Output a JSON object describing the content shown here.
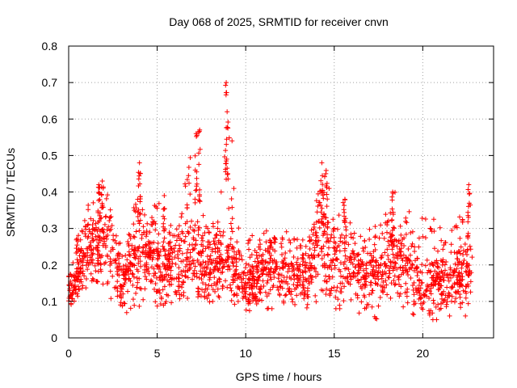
{
  "chart_data": {
    "type": "scatter",
    "title": "Day 068 of 2025, SRMTID for receiver cnvn",
    "xlabel": "GPS time / hours",
    "ylabel": "SRMTID / TECUs",
    "xlim": [
      0,
      24
    ],
    "ylim": [
      0,
      0.8
    ],
    "xticks": [
      0,
      5,
      10,
      15,
      20
    ],
    "xtick_labels": [
      "0",
      "5",
      "10",
      "15",
      "20"
    ],
    "yticks": [
      0,
      0.1,
      0.2,
      0.3,
      0.4,
      0.5,
      0.6,
      0.7,
      0.8
    ],
    "ytick_labels": [
      "0",
      "0.1",
      "0.2",
      "0.3",
      "0.4",
      "0.5",
      "0.6",
      "0.7",
      "0.8"
    ],
    "grid": true,
    "marker": "+",
    "color": "#ff0000",
    "series_envelope": {
      "description": "Dense scatter; approximate typical level and upper envelope vs hour",
      "hours": [
        0,
        0.5,
        1,
        1.5,
        2,
        2.5,
        3,
        3.5,
        4,
        4.5,
        5,
        5.5,
        6,
        6.5,
        7,
        7.5,
        8,
        8.5,
        9,
        9.5,
        10,
        10.5,
        11,
        11.5,
        12,
        12.5,
        13,
        13.5,
        14,
        14.5,
        15,
        15.5,
        16,
        16.5,
        17,
        17.5,
        18,
        18.5,
        19,
        19.5,
        20,
        20.5,
        21,
        21.5,
        22,
        22.5,
        22.8
      ],
      "typical": [
        0.12,
        0.16,
        0.22,
        0.24,
        0.26,
        0.22,
        0.13,
        0.2,
        0.22,
        0.22,
        0.18,
        0.18,
        0.2,
        0.18,
        0.24,
        0.2,
        0.18,
        0.2,
        0.2,
        0.18,
        0.13,
        0.15,
        0.18,
        0.18,
        0.18,
        0.16,
        0.16,
        0.17,
        0.24,
        0.24,
        0.2,
        0.2,
        0.18,
        0.16,
        0.16,
        0.16,
        0.18,
        0.2,
        0.18,
        0.16,
        0.14,
        0.14,
        0.14,
        0.15,
        0.16,
        0.17,
        0.18
      ],
      "max": [
        0.2,
        0.28,
        0.35,
        0.42,
        0.44,
        0.32,
        0.25,
        0.3,
        0.48,
        0.3,
        0.4,
        0.32,
        0.3,
        0.4,
        0.57,
        0.35,
        0.3,
        0.35,
        0.7,
        0.35,
        0.28,
        0.3,
        0.3,
        0.28,
        0.3,
        0.3,
        0.28,
        0.27,
        0.38,
        0.48,
        0.32,
        0.38,
        0.3,
        0.28,
        0.3,
        0.33,
        0.35,
        0.41,
        0.38,
        0.39,
        0.33,
        0.33,
        0.33,
        0.3,
        0.35,
        0.3,
        0.42
      ],
      "min": [
        0.08,
        0.1,
        0.12,
        0.1,
        0.12,
        0.1,
        0.05,
        0.07,
        0.08,
        0.12,
        0.05,
        0.1,
        0.08,
        0.1,
        0.12,
        0.08,
        0.1,
        0.1,
        0.07,
        0.1,
        0.06,
        0.08,
        0.08,
        0.08,
        0.08,
        0.08,
        0.1,
        0.08,
        0.1,
        0.08,
        0.08,
        0.08,
        0.08,
        0.06,
        0.06,
        0.05,
        0.08,
        0.08,
        0.08,
        0.06,
        0.06,
        0.05,
        0.05,
        0.06,
        0.06,
        0.06,
        0.08
      ]
    },
    "peaks": [
      {
        "x": 1.7,
        "y": 0.42
      },
      {
        "x": 1.9,
        "y": 0.43
      },
      {
        "x": 4.0,
        "y": 0.48
      },
      {
        "x": 5.4,
        "y": 0.39
      },
      {
        "x": 7.2,
        "y": 0.56
      },
      {
        "x": 7.4,
        "y": 0.57
      },
      {
        "x": 8.9,
        "y": 0.7
      },
      {
        "x": 8.95,
        "y": 0.62
      },
      {
        "x": 14.3,
        "y": 0.48
      },
      {
        "x": 15.6,
        "y": 0.38
      },
      {
        "x": 18.3,
        "y": 0.4
      },
      {
        "x": 22.6,
        "y": 0.42
      }
    ]
  }
}
